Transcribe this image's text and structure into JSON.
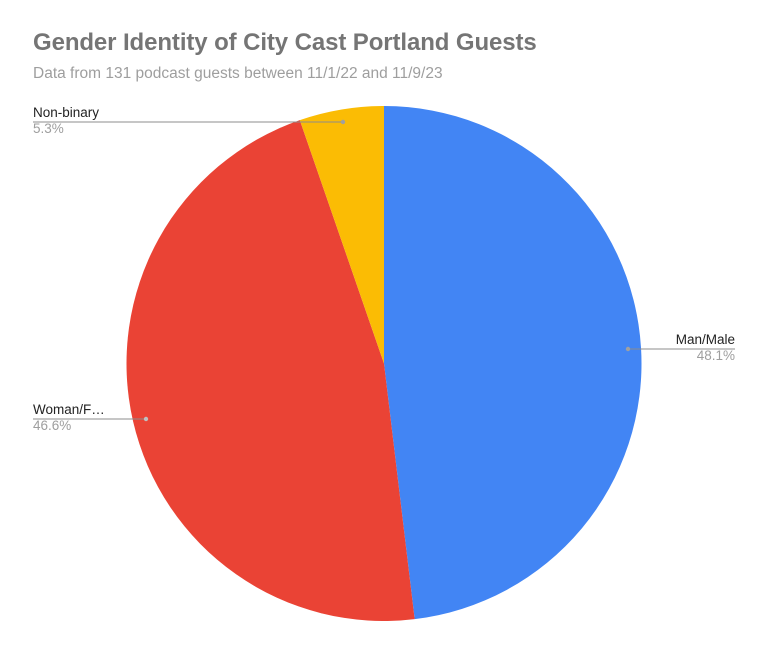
{
  "chart_data": {
    "type": "pie",
    "title": "Gender Identity of City Cast Portland Guests",
    "subtitle": "Data from 131 podcast guests between 11/1/22 and 11/9/23",
    "categories": [
      "Man/Male",
      "Woman/Female",
      "Non-binary"
    ],
    "values": [
      48.1,
      46.6,
      5.3
    ],
    "display_labels": [
      "Man/Male",
      "Woman/F…",
      "Non-binary"
    ],
    "value_labels": [
      "48.1%",
      "46.6%",
      "5.3%"
    ],
    "colors": [
      "#4285F4",
      "#EA4335",
      "#FBBC04"
    ],
    "start_angle": "12 o'clock, clockwise",
    "legend": "none (slice labels with leader lines)"
  },
  "header": {
    "title": "Gender Identity of City Cast Portland Guests",
    "subtitle": "Data from 131 podcast guests between 11/1/22 and 11/9/23"
  },
  "labels": {
    "man": {
      "name": "Man/Male",
      "pct": "48.1%"
    },
    "woman": {
      "name": "Woman/F…",
      "pct": "46.6%"
    },
    "nonbinary": {
      "name": "Non-binary",
      "pct": "5.3%"
    }
  }
}
